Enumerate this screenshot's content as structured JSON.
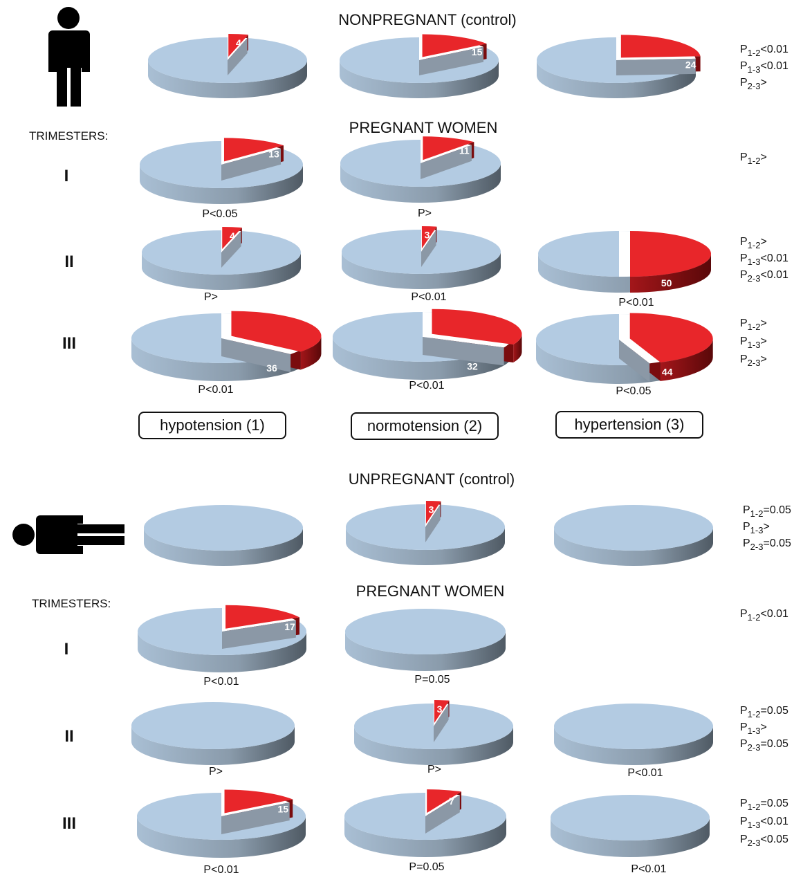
{
  "groups": {
    "standing": {
      "control_title": "NONPREGNANT (control)",
      "pregnant_title": "PREGNANT WOMEN",
      "trimesters_label": "TRIMESTERS:",
      "control_stats": [
        "P1-2<0.01",
        "P1-3<0.01",
        "P2-3>"
      ],
      "rows": [
        {
          "roman": "I",
          "stats": [
            "P1-2>"
          ]
        },
        {
          "roman": "II",
          "stats": [
            "P1-2>",
            "P1-3<0.01",
            "P2-3<0.01"
          ]
        },
        {
          "roman": "III",
          "stats": [
            "P1-2>",
            "P1-3>",
            "P2-3>"
          ]
        }
      ]
    },
    "lying": {
      "control_title": "UNPREGNANT (control)",
      "pregnant_title": "PREGNANT WOMEN",
      "trimesters_label": "TRIMESTERS:",
      "control_stats": [
        "P1-2=0.05",
        "P1-3>",
        "P2-3=0.05"
      ],
      "rows": [
        {
          "roman": "I",
          "stats": [
            "P1-2<0.01"
          ]
        },
        {
          "roman": "II",
          "stats": [
            "P1-2=0.05",
            "P1-3>",
            "P2-3=0.05"
          ]
        },
        {
          "roman": "III",
          "stats": [
            "P1-2=0.05",
            "P1-3<0.01",
            "P2-3<0.05"
          ]
        }
      ]
    }
  },
  "legend": [
    "hypotension (1)",
    "normotension (2)",
    "hypertension (3)"
  ],
  "colors": {
    "pie_base": "#b3cbe2",
    "pie_side": "#7e8fa0",
    "highlight": "#e8262a",
    "highlight_side": "#7a0c0e"
  },
  "chart_data": [
    {
      "type": "pie",
      "title": "NONPREGNANT (control)",
      "series": [
        {
          "values": [
            4,
            15,
            24
          ]
        }
      ],
      "categories": [
        "hypotension (1)",
        "normotension (2)",
        "hypertension (3)"
      ],
      "p_labels": [
        "",
        "",
        ""
      ]
    },
    {
      "type": "pie",
      "title": "PREGNANT WOMEN",
      "categories": [
        "hypotension (1)",
        "normotension (2)",
        "hypertension (3)"
      ],
      "rows": [
        {
          "trimester": "I",
          "values": [
            13,
            11,
            null
          ],
          "p_labels": [
            "P<0.05",
            "P>",
            ""
          ]
        },
        {
          "trimester": "II",
          "values": [
            4,
            3,
            50
          ],
          "p_labels": [
            "P>",
            "P<0.01",
            "P<0.01"
          ]
        },
        {
          "trimester": "III",
          "values": [
            36,
            32,
            44
          ],
          "p_labels": [
            "P<0.01",
            "P<0.01",
            "P<0.05"
          ]
        }
      ]
    },
    {
      "type": "pie",
      "title": "UNPREGNANT (control)",
      "series": [
        {
          "values": [
            0,
            3,
            0
          ]
        }
      ],
      "categories": [
        "hypotension (1)",
        "normotension (2)",
        "hypertension (3)"
      ],
      "p_labels": [
        "",
        "",
        ""
      ]
    },
    {
      "type": "pie",
      "title": "PREGNANT WOMEN",
      "categories": [
        "hypotension (1)",
        "normotension (2)",
        "hypertension (3)"
      ],
      "rows": [
        {
          "trimester": "I",
          "values": [
            17,
            0,
            null
          ],
          "p_labels": [
            "P<0.01",
            "P=0.05",
            ""
          ]
        },
        {
          "trimester": "II",
          "values": [
            0,
            3,
            0
          ],
          "p_labels": [
            "P>",
            "P>",
            "P<0.01"
          ]
        },
        {
          "trimester": "III",
          "values": [
            15,
            7,
            0
          ],
          "p_labels": [
            "P<0.01",
            "P=0.05",
            "P<0.01"
          ]
        }
      ]
    }
  ]
}
